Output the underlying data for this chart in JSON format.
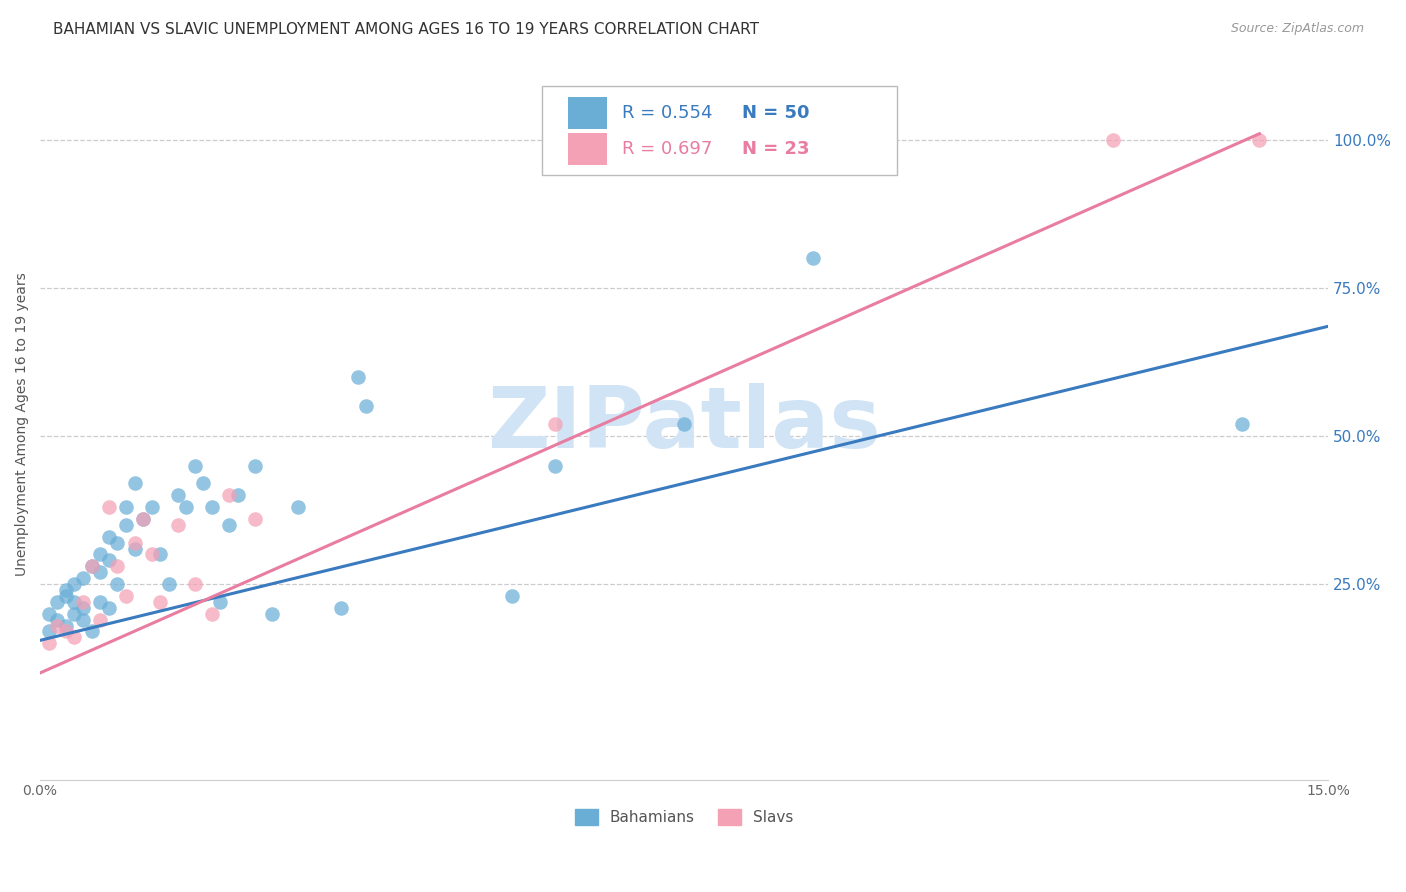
{
  "title": "BAHAMIAN VS SLAVIC UNEMPLOYMENT AMONG AGES 16 TO 19 YEARS CORRELATION CHART",
  "source": "Source: ZipAtlas.com",
  "ylabel": "Unemployment Among Ages 16 to 19 years",
  "right_ytick_labels": [
    "100.0%",
    "75.0%",
    "50.0%",
    "25.0%"
  ],
  "right_ytick_positions": [
    1.0,
    0.75,
    0.5,
    0.25
  ],
  "xlim": [
    0.0,
    0.15
  ],
  "ylim": [
    -0.08,
    1.12
  ],
  "legend_blue_r": "R = 0.554",
  "legend_blue_n": "N = 50",
  "legend_pink_r": "R = 0.697",
  "legend_pink_n": "N = 23",
  "blue_color": "#6aaed6",
  "pink_color": "#f4a0b5",
  "blue_line_color": "#3a7abf",
  "pink_line_color": "#e87da0",
  "watermark": "ZIPatlas",
  "watermark_color": "#d0e4f5",
  "title_fontsize": 11,
  "axis_label_fontsize": 10,
  "tick_label_fontsize": 10,
  "legend_fontsize": 13,
  "blue_scatter_x": [
    0.001,
    0.001,
    0.002,
    0.002,
    0.003,
    0.003,
    0.003,
    0.004,
    0.004,
    0.004,
    0.005,
    0.005,
    0.005,
    0.006,
    0.006,
    0.007,
    0.007,
    0.007,
    0.008,
    0.008,
    0.008,
    0.009,
    0.009,
    0.01,
    0.01,
    0.011,
    0.011,
    0.012,
    0.013,
    0.014,
    0.015,
    0.016,
    0.017,
    0.018,
    0.019,
    0.02,
    0.021,
    0.022,
    0.023,
    0.025,
    0.027,
    0.03,
    0.035,
    0.037,
    0.038,
    0.055,
    0.06,
    0.075,
    0.09,
    0.14
  ],
  "blue_scatter_y": [
    0.17,
    0.2,
    0.22,
    0.19,
    0.23,
    0.18,
    0.24,
    0.2,
    0.22,
    0.25,
    0.19,
    0.21,
    0.26,
    0.28,
    0.17,
    0.3,
    0.22,
    0.27,
    0.21,
    0.29,
    0.33,
    0.32,
    0.25,
    0.38,
    0.35,
    0.31,
    0.42,
    0.36,
    0.38,
    0.3,
    0.25,
    0.4,
    0.38,
    0.45,
    0.42,
    0.38,
    0.22,
    0.35,
    0.4,
    0.45,
    0.2,
    0.38,
    0.21,
    0.6,
    0.55,
    0.23,
    0.45,
    0.52,
    0.8,
    0.52
  ],
  "pink_scatter_x": [
    0.001,
    0.002,
    0.003,
    0.004,
    0.005,
    0.006,
    0.007,
    0.008,
    0.009,
    0.01,
    0.011,
    0.012,
    0.013,
    0.014,
    0.016,
    0.018,
    0.02,
    0.022,
    0.025,
    0.06,
    0.085,
    0.125,
    0.142
  ],
  "pink_scatter_y": [
    0.15,
    0.18,
    0.17,
    0.16,
    0.22,
    0.28,
    0.19,
    0.38,
    0.28,
    0.23,
    0.32,
    0.36,
    0.3,
    0.22,
    0.35,
    0.25,
    0.2,
    0.4,
    0.36,
    0.52,
    1.0,
    1.0,
    1.0
  ],
  "blue_trend_x": [
    0.0,
    0.15
  ],
  "blue_trend_y": [
    0.155,
    0.685
  ],
  "pink_trend_x": [
    0.0,
    0.142
  ],
  "pink_trend_y": [
    0.1,
    1.01
  ],
  "xticks": [
    0.0,
    0.025,
    0.05,
    0.075,
    0.1,
    0.125,
    0.15
  ],
  "xticklabels": [
    "0.0%",
    "",
    "",
    "",
    "",
    "",
    "15.0%"
  ]
}
